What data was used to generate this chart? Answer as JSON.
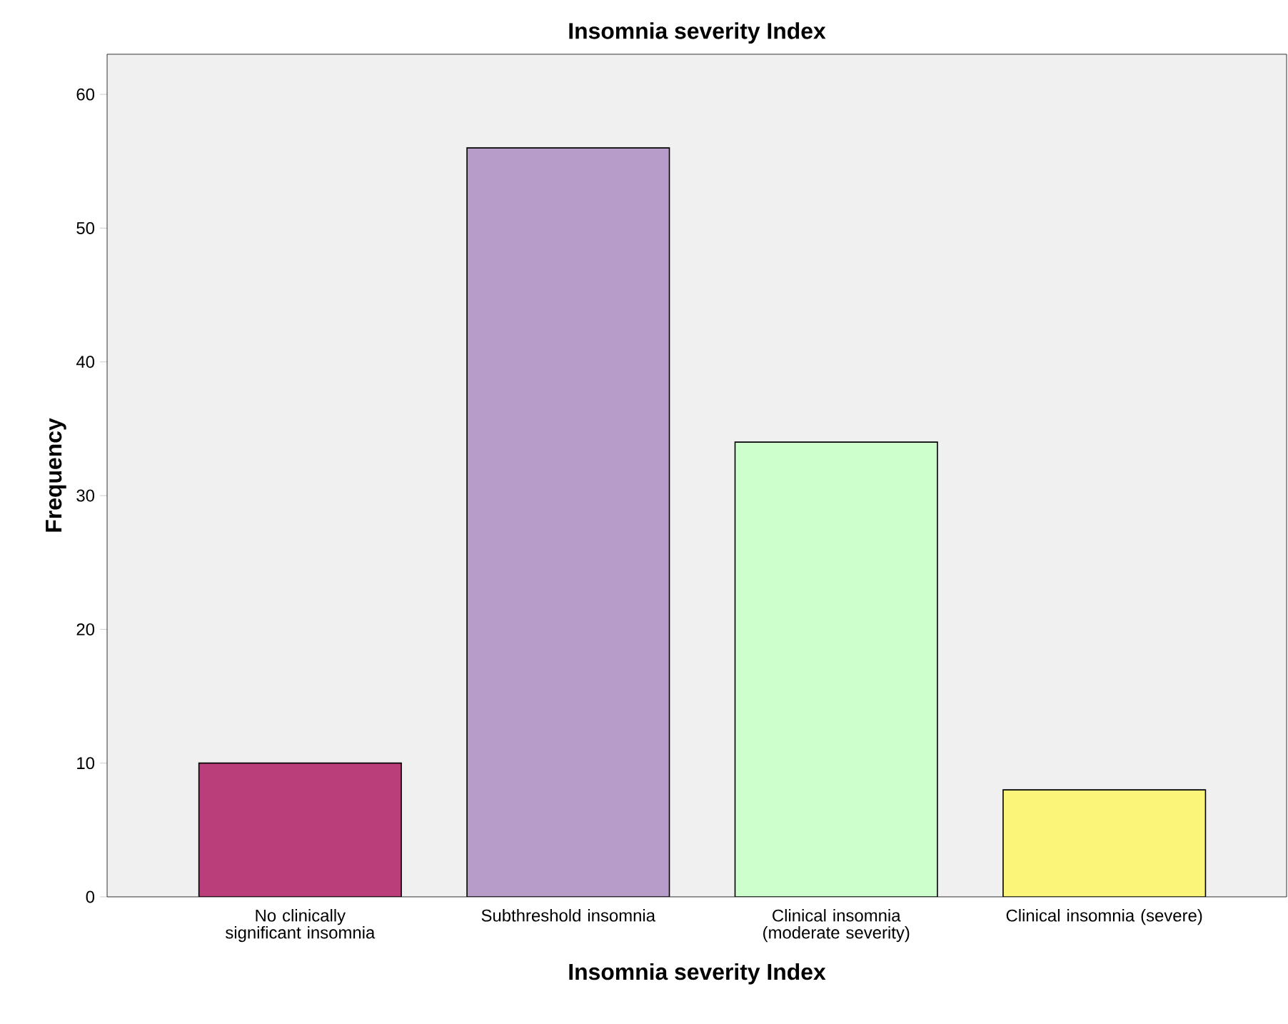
{
  "chart_data": {
    "type": "bar",
    "title": "Insomnia severity Index",
    "xlabel": "Insomnia severity Index",
    "ylabel": "Frequency",
    "categories": [
      "No clinically significant insomnia",
      "Subthreshold insomnia",
      "Clinical insomnia (moderate severity)",
      "Clinical insomnia (severe)"
    ],
    "values": [
      10,
      56,
      34,
      8
    ],
    "colors": [
      "#b93e7a",
      "#b79bc9",
      "#ccffcc",
      "#fbf67a"
    ],
    "ylim": [
      0,
      63
    ],
    "yticks": [
      0,
      10,
      20,
      30,
      40,
      50,
      60
    ]
  }
}
